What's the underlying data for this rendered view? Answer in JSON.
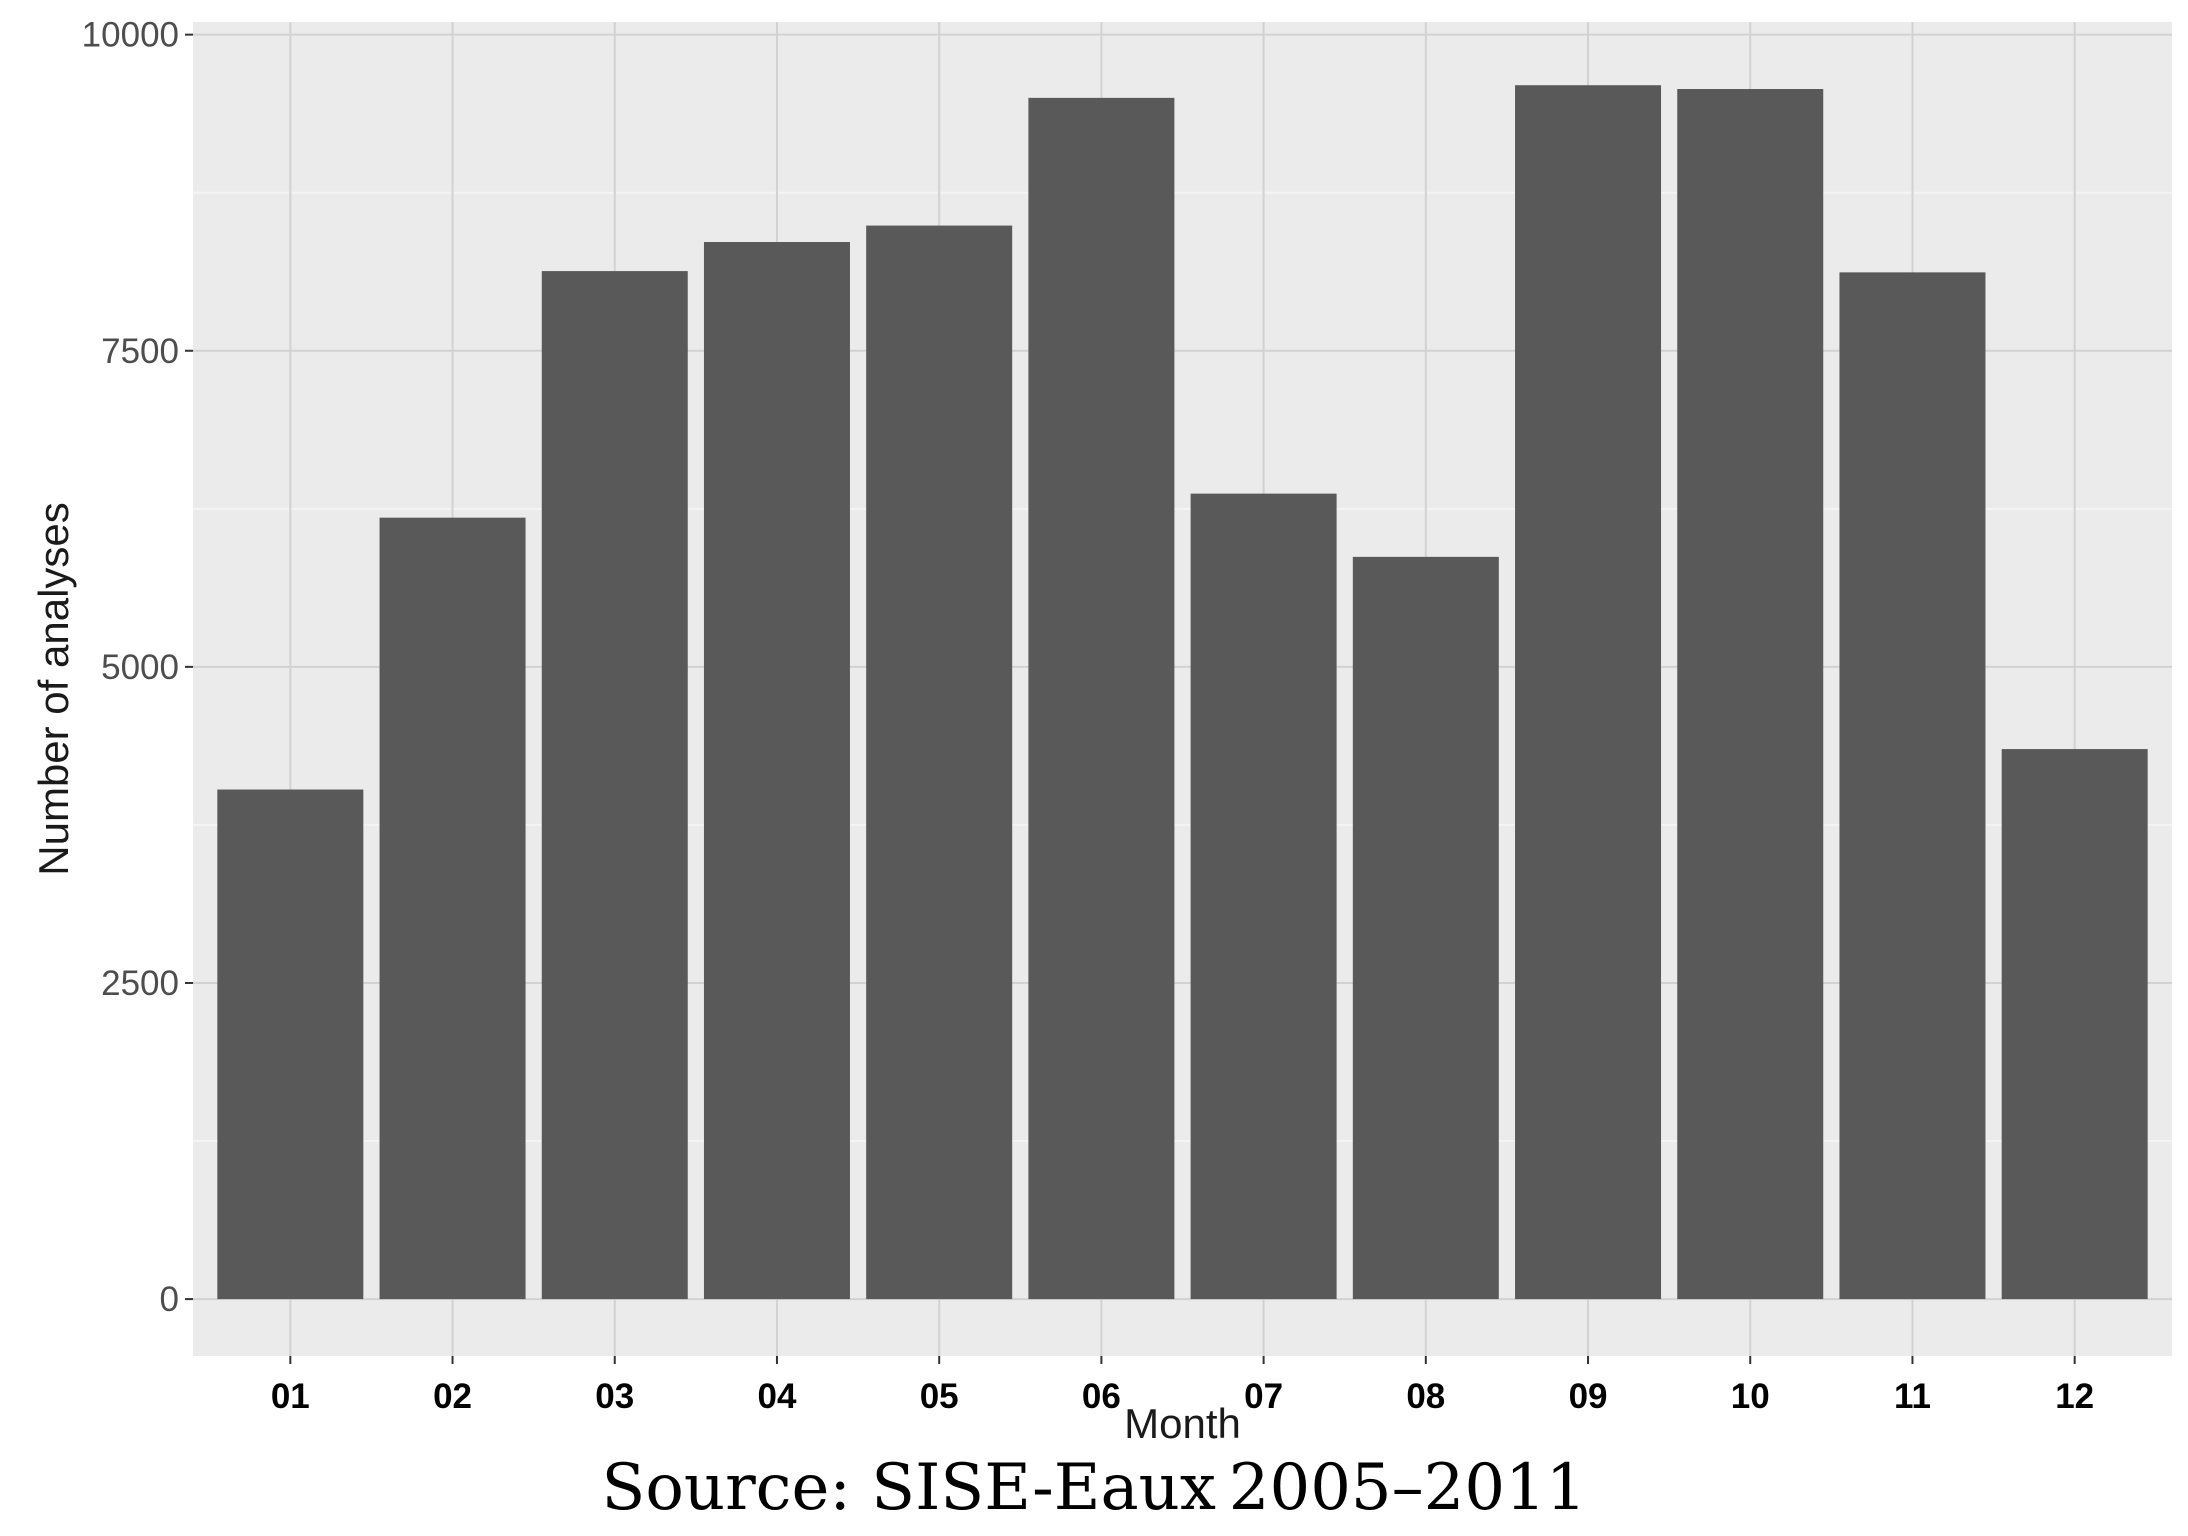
{
  "chart_data": {
    "type": "bar",
    "title": "",
    "xlabel": "Month",
    "ylabel": "Number of analyses",
    "categories": [
      "01",
      "02",
      "03",
      "04",
      "05",
      "06",
      "07",
      "08",
      "09",
      "10",
      "11",
      "12"
    ],
    "values": [
      4030,
      6180,
      8130,
      8360,
      8490,
      9500,
      6370,
      5870,
      9600,
      9570,
      8120,
      4350
    ],
    "ylim": [
      -450,
      10100
    ],
    "yticks": [
      0,
      2500,
      5000,
      7500,
      10000
    ],
    "grid": true,
    "colors": {
      "bar": "#595959",
      "panel": "#ebebeb",
      "grid_major": "#d2d2d2",
      "grid_minor": "#f4f4f4"
    }
  },
  "caption": "Source: SISE-Eaux 2005–2011"
}
